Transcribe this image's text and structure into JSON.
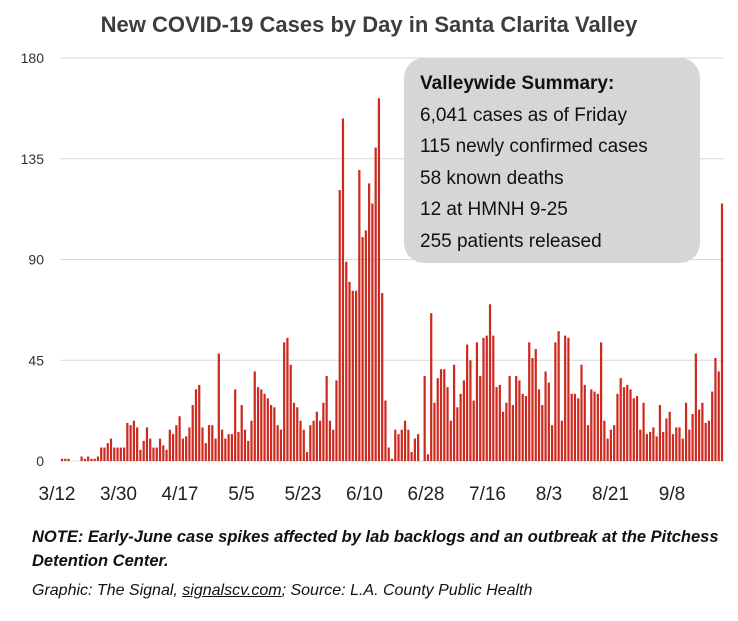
{
  "chart_data": {
    "type": "bar",
    "title": "New COVID-19 Cases by Day in Santa Clarita Valley",
    "xlabel": "",
    "ylabel": "",
    "ylim": [
      0,
      180
    ],
    "yticks": [
      "0",
      "45",
      "90",
      "135",
      "180"
    ],
    "xticks": [
      "3/12",
      "3/30",
      "4/17",
      "5/5",
      "5/23",
      "6/10",
      "6/28",
      "7/16",
      "8/3",
      "8/21",
      "9/8"
    ],
    "grid": true,
    "bar_color": "#cc2a1f",
    "series": [
      {
        "values": [
          1,
          1,
          1,
          0,
          0,
          0,
          2,
          1,
          2,
          1,
          1,
          2,
          6,
          6,
          8,
          10,
          6,
          6,
          6,
          6,
          17,
          16,
          18,
          15,
          5,
          9,
          15,
          10,
          6,
          6,
          10,
          7,
          5,
          14,
          12,
          16,
          20,
          10,
          11,
          15,
          25,
          32,
          34,
          15,
          8,
          16,
          16,
          10,
          48,
          14,
          10,
          12,
          12,
          32,
          13,
          25,
          14,
          9,
          18,
          40,
          33,
          32,
          30,
          28,
          25,
          24,
          16,
          14,
          53,
          55,
          43,
          26,
          24,
          18,
          14,
          4,
          16,
          18,
          22,
          18,
          26,
          38,
          18,
          14,
          36,
          121,
          153,
          89,
          80,
          76,
          76,
          130,
          100,
          103,
          124,
          115,
          140,
          162,
          75,
          27,
          6,
          1,
          14,
          12,
          14,
          18,
          14,
          4,
          10,
          12,
          0,
          38,
          3,
          66,
          26,
          37,
          41,
          41,
          33,
          18,
          43,
          24,
          30,
          36,
          52,
          45,
          27,
          53,
          38,
          55,
          56,
          70,
          56,
          33,
          34,
          22,
          26,
          38,
          25,
          38,
          36,
          30,
          29,
          53,
          46,
          50,
          32,
          25,
          40,
          35,
          16,
          53,
          58,
          18,
          56,
          55,
          30,
          30,
          28,
          43,
          34,
          16,
          32,
          31,
          30,
          53,
          18,
          10,
          14,
          16,
          30,
          37,
          33,
          34,
          32,
          28,
          29,
          14,
          26,
          12,
          13,
          15,
          11,
          25,
          13,
          19,
          22,
          12,
          15,
          15,
          10,
          26,
          14,
          21,
          48,
          23,
          26,
          17,
          18,
          31,
          46,
          40,
          115
        ]
      }
    ]
  },
  "summary": {
    "heading": "Valleywide Summary:",
    "lines": [
      "6,041 cases as of Friday",
      "115 newly confirmed cases",
      "58 known deaths",
      "12 at HMNH 9-25",
      "255 patients released"
    ]
  },
  "note": "NOTE: Early-June case spikes affected by lab backlogs and an outbreak at the Pitchess Detention Center.",
  "credit": {
    "prefix": "Graphic: The Signal, ",
    "link": "signalscv.com",
    "suffix": "; Source: L.A. County Public Health"
  },
  "colors": {
    "bar": "#cc2a1f",
    "grid": "#d9d9d9",
    "summary_bg": "#d6d6d6",
    "title": "#3d3d3d"
  }
}
